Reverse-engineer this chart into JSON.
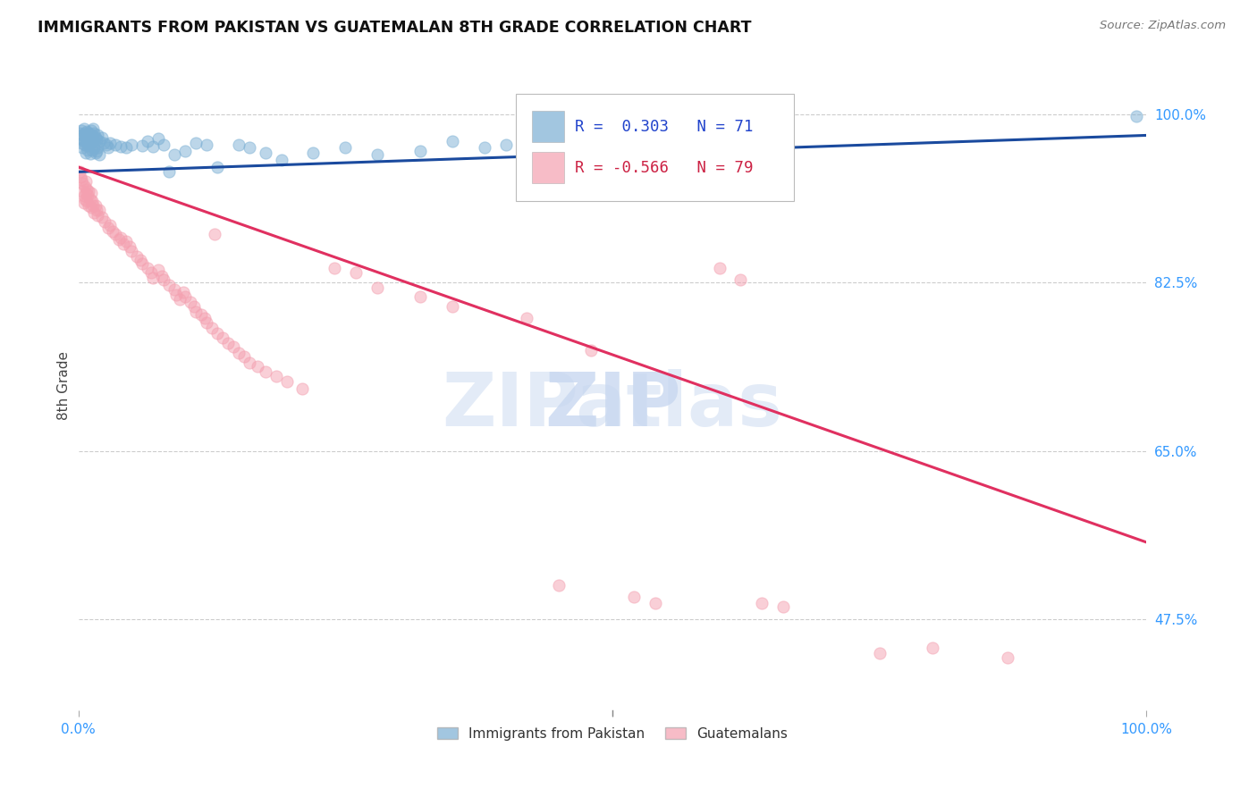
{
  "title": "IMMIGRANTS FROM PAKISTAN VS GUATEMALAN 8TH GRADE CORRELATION CHART",
  "source": "Source: ZipAtlas.com",
  "ylabel": "8th Grade",
  "y_ticks": [
    0.475,
    0.65,
    0.825,
    1.0
  ],
  "y_tick_labels": [
    "47.5%",
    "65.0%",
    "82.5%",
    "100.0%"
  ],
  "xlim": [
    0.0,
    1.0
  ],
  "ylim": [
    0.38,
    1.055
  ],
  "blue_color": "#7bafd4",
  "pink_color": "#f4a0b0",
  "blue_line_color": "#1a4a9e",
  "pink_line_color": "#e03060",
  "blue_trend_x": [
    0.0,
    1.0
  ],
  "blue_trend_y": [
    0.94,
    0.978
  ],
  "pink_trend_x": [
    0.0,
    1.0
  ],
  "pink_trend_y": [
    0.945,
    0.555
  ],
  "blue_scatter": [
    [
      0.001,
      0.98
    ],
    [
      0.002,
      0.975
    ],
    [
      0.003,
      0.983
    ],
    [
      0.003,
      0.97
    ],
    [
      0.004,
      0.978
    ],
    [
      0.004,
      0.965
    ],
    [
      0.005,
      0.985
    ],
    [
      0.005,
      0.972
    ],
    [
      0.006,
      0.98
    ],
    [
      0.006,
      0.968
    ],
    [
      0.007,
      0.975
    ],
    [
      0.007,
      0.96
    ],
    [
      0.008,
      0.982
    ],
    [
      0.008,
      0.97
    ],
    [
      0.009,
      0.977
    ],
    [
      0.009,
      0.963
    ],
    [
      0.01,
      0.98
    ],
    [
      0.01,
      0.967
    ],
    [
      0.011,
      0.975
    ],
    [
      0.011,
      0.959
    ],
    [
      0.012,
      0.983
    ],
    [
      0.012,
      0.971
    ],
    [
      0.013,
      0.978
    ],
    [
      0.013,
      0.963
    ],
    [
      0.014,
      0.985
    ],
    [
      0.014,
      0.973
    ],
    [
      0.015,
      0.98
    ],
    [
      0.015,
      0.965
    ],
    [
      0.016,
      0.976
    ],
    [
      0.016,
      0.96
    ],
    [
      0.017,
      0.974
    ],
    [
      0.017,
      0.962
    ],
    [
      0.018,
      0.978
    ],
    [
      0.018,
      0.965
    ],
    [
      0.02,
      0.972
    ],
    [
      0.02,
      0.958
    ],
    [
      0.022,
      0.976
    ],
    [
      0.024,
      0.97
    ],
    [
      0.026,
      0.968
    ],
    [
      0.028,
      0.965
    ],
    [
      0.03,
      0.97
    ],
    [
      0.035,
      0.968
    ],
    [
      0.04,
      0.966
    ],
    [
      0.045,
      0.965
    ],
    [
      0.05,
      0.968
    ],
    [
      0.06,
      0.967
    ],
    [
      0.065,
      0.972
    ],
    [
      0.07,
      0.966
    ],
    [
      0.075,
      0.975
    ],
    [
      0.08,
      0.968
    ],
    [
      0.085,
      0.94
    ],
    [
      0.09,
      0.958
    ],
    [
      0.1,
      0.962
    ],
    [
      0.11,
      0.97
    ],
    [
      0.12,
      0.968
    ],
    [
      0.13,
      0.945
    ],
    [
      0.15,
      0.968
    ],
    [
      0.16,
      0.965
    ],
    [
      0.175,
      0.96
    ],
    [
      0.19,
      0.952
    ],
    [
      0.22,
      0.96
    ],
    [
      0.25,
      0.965
    ],
    [
      0.28,
      0.958
    ],
    [
      0.32,
      0.962
    ],
    [
      0.35,
      0.972
    ],
    [
      0.38,
      0.965
    ],
    [
      0.4,
      0.968
    ],
    [
      0.42,
      0.96
    ],
    [
      0.46,
      0.97
    ],
    [
      0.99,
      0.998
    ]
  ],
  "pink_scatter": [
    [
      0.001,
      0.94
    ],
    [
      0.002,
      0.935
    ],
    [
      0.003,
      0.932
    ],
    [
      0.004,
      0.928
    ],
    [
      0.004,
      0.92
    ],
    [
      0.005,
      0.915
    ],
    [
      0.005,
      0.908
    ],
    [
      0.006,
      0.925
    ],
    [
      0.006,
      0.912
    ],
    [
      0.007,
      0.93
    ],
    [
      0.007,
      0.918
    ],
    [
      0.008,
      0.922
    ],
    [
      0.008,
      0.91
    ],
    [
      0.009,
      0.916
    ],
    [
      0.01,
      0.92
    ],
    [
      0.01,
      0.905
    ],
    [
      0.011,
      0.912
    ],
    [
      0.012,
      0.918
    ],
    [
      0.012,
      0.903
    ],
    [
      0.013,
      0.91
    ],
    [
      0.014,
      0.905
    ],
    [
      0.015,
      0.898
    ],
    [
      0.016,
      0.905
    ],
    [
      0.017,
      0.9
    ],
    [
      0.018,
      0.895
    ],
    [
      0.02,
      0.9
    ],
    [
      0.022,
      0.893
    ],
    [
      0.025,
      0.888
    ],
    [
      0.028,
      0.882
    ],
    [
      0.03,
      0.885
    ],
    [
      0.032,
      0.878
    ],
    [
      0.035,
      0.875
    ],
    [
      0.038,
      0.87
    ],
    [
      0.04,
      0.872
    ],
    [
      0.042,
      0.865
    ],
    [
      0.045,
      0.868
    ],
    [
      0.048,
      0.862
    ],
    [
      0.05,
      0.858
    ],
    [
      0.055,
      0.852
    ],
    [
      0.058,
      0.848
    ],
    [
      0.06,
      0.845
    ],
    [
      0.065,
      0.84
    ],
    [
      0.068,
      0.835
    ],
    [
      0.07,
      0.83
    ],
    [
      0.075,
      0.838
    ],
    [
      0.078,
      0.832
    ],
    [
      0.08,
      0.828
    ],
    [
      0.085,
      0.822
    ],
    [
      0.09,
      0.818
    ],
    [
      0.092,
      0.812
    ],
    [
      0.095,
      0.808
    ],
    [
      0.098,
      0.815
    ],
    [
      0.1,
      0.81
    ],
    [
      0.105,
      0.805
    ],
    [
      0.108,
      0.8
    ],
    [
      0.11,
      0.795
    ],
    [
      0.115,
      0.792
    ],
    [
      0.118,
      0.788
    ],
    [
      0.12,
      0.783
    ],
    [
      0.125,
      0.778
    ],
    [
      0.128,
      0.875
    ],
    [
      0.13,
      0.772
    ],
    [
      0.135,
      0.768
    ],
    [
      0.14,
      0.762
    ],
    [
      0.145,
      0.758
    ],
    [
      0.15,
      0.752
    ],
    [
      0.155,
      0.748
    ],
    [
      0.16,
      0.742
    ],
    [
      0.168,
      0.738
    ],
    [
      0.175,
      0.732
    ],
    [
      0.185,
      0.728
    ],
    [
      0.195,
      0.722
    ],
    [
      0.21,
      0.715
    ],
    [
      0.24,
      0.84
    ],
    [
      0.26,
      0.835
    ],
    [
      0.28,
      0.82
    ],
    [
      0.32,
      0.81
    ],
    [
      0.35,
      0.8
    ],
    [
      0.42,
      0.788
    ],
    [
      0.45,
      0.51
    ],
    [
      0.48,
      0.755
    ],
    [
      0.52,
      0.498
    ],
    [
      0.54,
      0.492
    ],
    [
      0.6,
      0.84
    ],
    [
      0.62,
      0.828
    ],
    [
      0.64,
      0.492
    ],
    [
      0.66,
      0.488
    ],
    [
      0.75,
      0.44
    ],
    [
      0.8,
      0.445
    ],
    [
      0.87,
      0.435
    ]
  ]
}
